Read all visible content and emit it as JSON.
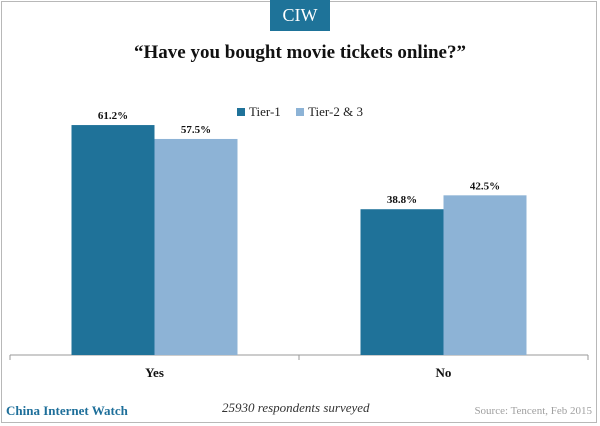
{
  "badge": "CIW",
  "chart_data": {
    "type": "bar",
    "title": "“Have you bought movie tickets online?”",
    "categories": [
      "Yes",
      "No"
    ],
    "series": [
      {
        "name": "Tier-1",
        "values": [
          61.2,
          38.8
        ],
        "labels": [
          "61.2%",
          "38.8%"
        ],
        "color": "#1f7299"
      },
      {
        "name": "Tier-2 & 3",
        "values": [
          57.5,
          42.5
        ],
        "labels": [
          "57.5%",
          "42.5%"
        ],
        "color": "#8db3d6"
      }
    ],
    "unit": "%",
    "ylim": [
      0,
      70
    ],
    "grid": false,
    "legend_position": "top-center"
  },
  "footer": {
    "brand": "China Internet Watch",
    "note": "25930 respondents surveyed",
    "source": "Source: Tencent, Feb 2015"
  }
}
